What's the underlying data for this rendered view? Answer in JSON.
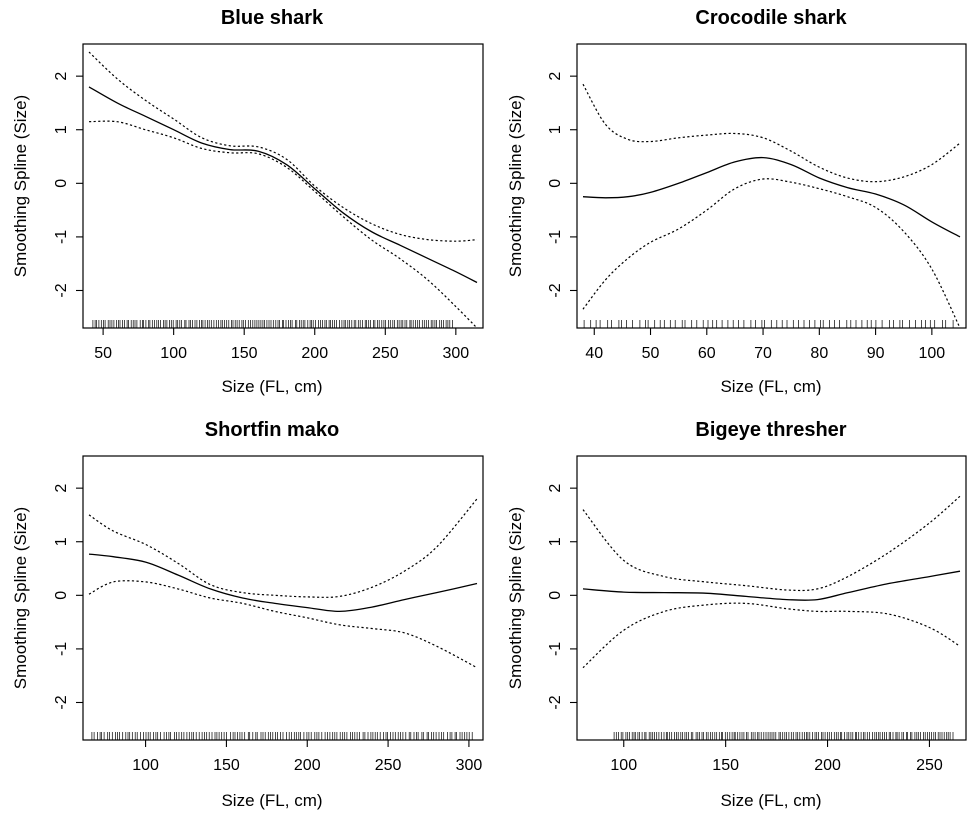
{
  "chart_data": [
    {
      "type": "line",
      "title": "Blue shark",
      "xlabel": "Size (FL, cm)",
      "ylabel": "Smoothing Spline (Size)",
      "xlim": [
        40,
        315
      ],
      "ylim": [
        -2.7,
        2.6
      ],
      "xticks": [
        50,
        100,
        150,
        200,
        250,
        300
      ],
      "yticks": [
        -2,
        -1,
        0,
        1,
        2
      ],
      "series": [
        {
          "role": "fit",
          "x": [
            40,
            60,
            80,
            100,
            120,
            140,
            160,
            180,
            200,
            220,
            240,
            260,
            280,
            300,
            315
          ],
          "y": [
            1.8,
            1.5,
            1.25,
            1.0,
            0.75,
            0.63,
            0.6,
            0.35,
            -0.1,
            -0.55,
            -0.9,
            -1.15,
            -1.4,
            -1.65,
            -1.85
          ]
        },
        {
          "role": "upper",
          "x": [
            40,
            60,
            80,
            100,
            120,
            140,
            160,
            180,
            200,
            220,
            240,
            260,
            280,
            300,
            315
          ],
          "y": [
            2.45,
            1.95,
            1.55,
            1.2,
            0.85,
            0.7,
            0.68,
            0.45,
            -0.05,
            -0.45,
            -0.75,
            -0.95,
            -1.05,
            -1.08,
            -1.05
          ]
        },
        {
          "role": "lower",
          "x": [
            40,
            60,
            80,
            100,
            120,
            140,
            160,
            180,
            200,
            220,
            240,
            260,
            280,
            300,
            315
          ],
          "y": [
            1.15,
            1.15,
            1.0,
            0.85,
            0.65,
            0.57,
            0.55,
            0.3,
            -0.15,
            -0.62,
            -1.05,
            -1.4,
            -1.8,
            -2.3,
            -2.7
          ]
        }
      ],
      "rug": {
        "min": 42,
        "max": 298,
        "count": 170
      }
    },
    {
      "type": "line",
      "title": "Crocodile shark",
      "xlabel": "Size (FL, cm)",
      "ylabel": "Smoothing Spline (Size)",
      "xlim": [
        38,
        105
      ],
      "ylim": [
        -2.7,
        2.6
      ],
      "xticks": [
        40,
        50,
        60,
        70,
        80,
        90,
        100
      ],
      "yticks": [
        -2,
        -1,
        0,
        1,
        2
      ],
      "series": [
        {
          "role": "fit",
          "x": [
            38,
            42,
            46,
            50,
            55,
            60,
            65,
            70,
            75,
            80,
            85,
            90,
            95,
            100,
            105
          ],
          "y": [
            -0.25,
            -0.27,
            -0.25,
            -0.17,
            0.0,
            0.2,
            0.4,
            0.48,
            0.35,
            0.1,
            -0.08,
            -0.2,
            -0.4,
            -0.72,
            -1.0
          ]
        },
        {
          "role": "upper",
          "x": [
            38,
            42,
            46,
            50,
            55,
            60,
            65,
            70,
            75,
            80,
            85,
            90,
            95,
            100,
            105
          ],
          "y": [
            1.85,
            1.1,
            0.82,
            0.78,
            0.85,
            0.9,
            0.93,
            0.85,
            0.6,
            0.3,
            0.1,
            0.03,
            0.12,
            0.35,
            0.75
          ]
        },
        {
          "role": "lower",
          "x": [
            38,
            42,
            46,
            50,
            55,
            60,
            65,
            70,
            75,
            80,
            85,
            90,
            95,
            100,
            105
          ],
          "y": [
            -2.35,
            -1.8,
            -1.4,
            -1.1,
            -0.85,
            -0.5,
            -0.1,
            0.08,
            0.02,
            -0.1,
            -0.25,
            -0.45,
            -0.9,
            -1.6,
            -2.7
          ]
        }
      ],
      "rug": {
        "min": 38,
        "max": 104,
        "count": 70
      }
    },
    {
      "type": "line",
      "title": "Shortfin mako",
      "xlabel": "Size (FL, cm)",
      "ylabel": "Smoothing Spline (Size)",
      "xlim": [
        65,
        305
      ],
      "ylim": [
        -2.7,
        2.6
      ],
      "xticks": [
        100,
        150,
        200,
        250,
        300
      ],
      "yticks": [
        -2,
        -1,
        0,
        1,
        2
      ],
      "series": [
        {
          "role": "fit",
          "x": [
            65,
            80,
            100,
            120,
            140,
            160,
            180,
            200,
            220,
            240,
            260,
            280,
            305
          ],
          "y": [
            0.77,
            0.72,
            0.62,
            0.38,
            0.12,
            -0.05,
            -0.15,
            -0.23,
            -0.3,
            -0.22,
            -0.08,
            0.05,
            0.22
          ]
        },
        {
          "role": "upper",
          "x": [
            65,
            80,
            100,
            120,
            140,
            160,
            180,
            200,
            220,
            240,
            260,
            280,
            305
          ],
          "y": [
            1.5,
            1.2,
            0.95,
            0.6,
            0.2,
            0.05,
            0.0,
            -0.03,
            -0.02,
            0.15,
            0.45,
            0.9,
            1.8
          ]
        },
        {
          "role": "lower",
          "x": [
            65,
            80,
            100,
            120,
            140,
            160,
            180,
            200,
            220,
            240,
            260,
            280,
            305
          ],
          "y": [
            0.02,
            0.25,
            0.25,
            0.12,
            -0.05,
            -0.15,
            -0.3,
            -0.42,
            -0.55,
            -0.62,
            -0.7,
            -0.95,
            -1.35
          ]
        }
      ],
      "rug": {
        "min": 66,
        "max": 303,
        "count": 150
      }
    },
    {
      "type": "line",
      "title": "Bigeye thresher",
      "xlabel": "Size (FL, cm)",
      "ylabel": "Smoothing Spline (Size)",
      "xlim": [
        80,
        265
      ],
      "ylim": [
        -2.7,
        2.6
      ],
      "xticks": [
        100,
        150,
        200,
        250
      ],
      "yticks": [
        -2,
        -1,
        0,
        1,
        2
      ],
      "series": [
        {
          "role": "fit",
          "x": [
            80,
            100,
            120,
            140,
            160,
            180,
            195,
            210,
            230,
            250,
            265
          ],
          "y": [
            0.12,
            0.06,
            0.05,
            0.04,
            -0.02,
            -0.08,
            -0.08,
            0.05,
            0.22,
            0.35,
            0.45
          ]
        },
        {
          "role": "upper",
          "x": [
            80,
            100,
            120,
            140,
            160,
            180,
            195,
            210,
            230,
            250,
            265
          ],
          "y": [
            1.6,
            0.65,
            0.35,
            0.25,
            0.18,
            0.1,
            0.12,
            0.35,
            0.8,
            1.35,
            1.85
          ]
        },
        {
          "role": "lower",
          "x": [
            80,
            100,
            120,
            140,
            160,
            180,
            195,
            210,
            230,
            250,
            265
          ],
          "y": [
            -1.35,
            -0.65,
            -0.3,
            -0.18,
            -0.15,
            -0.25,
            -0.3,
            -0.3,
            -0.35,
            -0.6,
            -0.95
          ]
        }
      ],
      "rug": {
        "min": 95,
        "max": 262,
        "count": 160
      }
    }
  ]
}
